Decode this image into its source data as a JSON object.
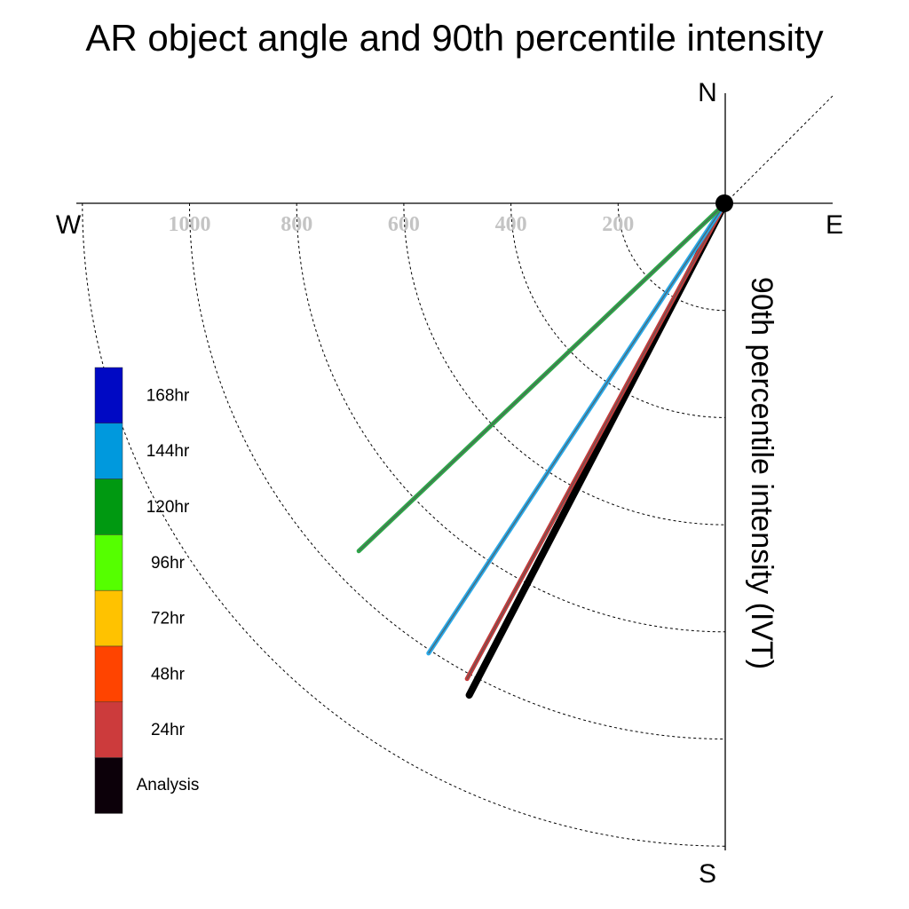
{
  "chart_data": {
    "type": "polar-vector",
    "title": "AR object angle and 90th percentile intensity",
    "radial_label": "90th percentile intensity (IVT)",
    "compass": {
      "north": "N",
      "south": "S",
      "east": "E",
      "west": "W"
    },
    "radial_ticks": [
      {
        "value": 200,
        "label": "200"
      },
      {
        "value": 400,
        "label": "400"
      },
      {
        "value": 600,
        "label": "600"
      },
      {
        "value": 800,
        "label": "800"
      },
      {
        "value": 1000,
        "label": "1000"
      }
    ],
    "radial_max": 1200,
    "legend": [
      {
        "label": "168hr",
        "color": "#0009c4"
      },
      {
        "label": "144hr",
        "color": "#0099dd"
      },
      {
        "label": "120hr",
        "color": "#009911"
      },
      {
        "label": "96hr",
        "color": "#55ff00"
      },
      {
        "label": "72hr",
        "color": "#ffc200"
      },
      {
        "label": "48hr",
        "color": "#ff4400"
      },
      {
        "label": "24hr",
        "color": "#cc3b3c"
      },
      {
        "label": "Analysis",
        "color": "#0c0009"
      }
    ],
    "vectors": [
      {
        "name": "Analysis",
        "angle_deg": 207.5,
        "magnitude": 1035,
        "color": "#000000"
      },
      {
        "name": "24hr",
        "angle_deg": 208.5,
        "magnitude": 1010,
        "color": "#c43c3c"
      },
      {
        "name": "144hr",
        "angle_deg": 213.4,
        "magnitude": 1006,
        "color": "#2aa9e8"
      },
      {
        "name": "120hr",
        "angle_deg": 226.5,
        "magnitude": 943,
        "color": "#2ea84a"
      }
    ]
  }
}
